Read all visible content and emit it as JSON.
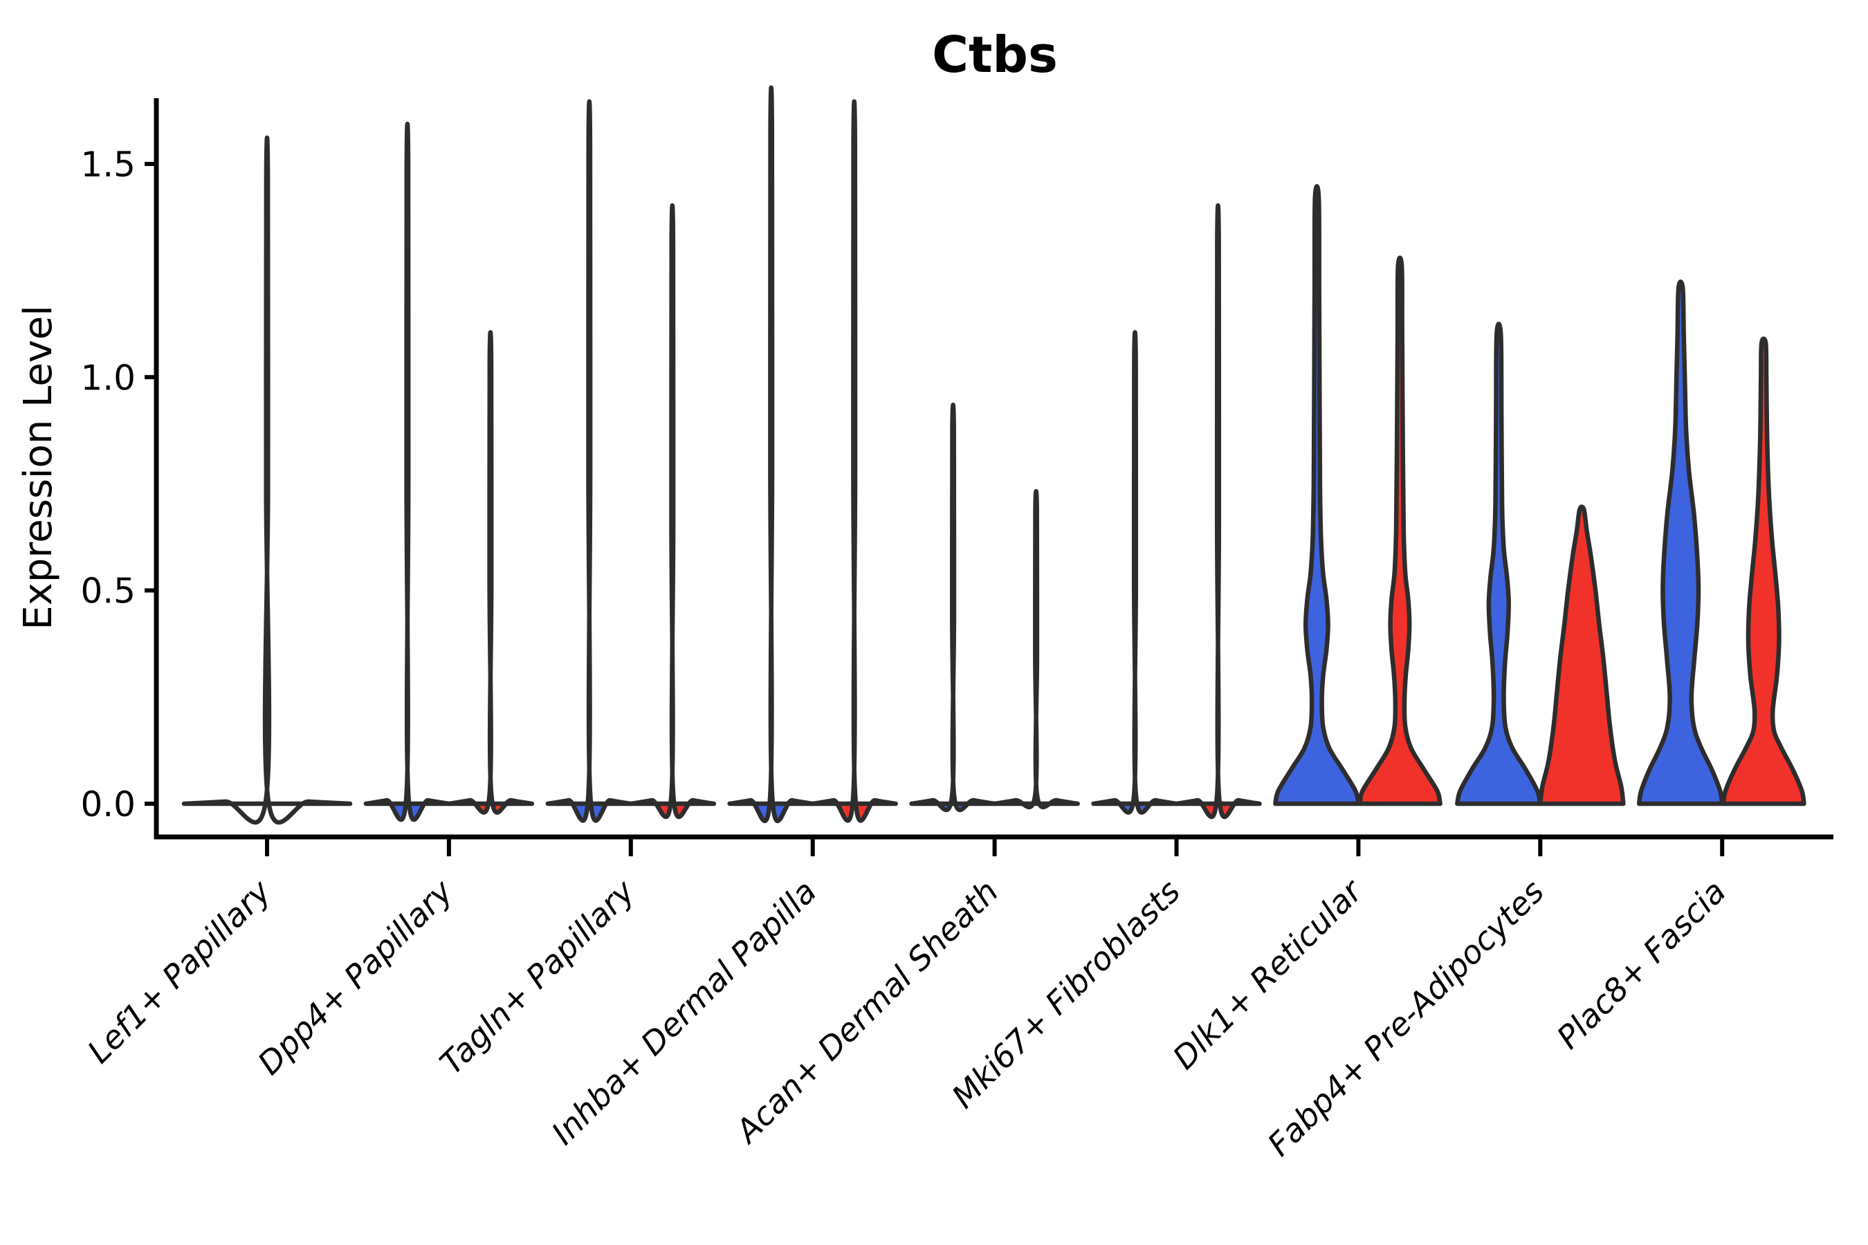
{
  "chart_data": {
    "type": "violin",
    "title": "Ctbs",
    "ylabel": "Expression Level",
    "xlabel": "",
    "ylim": [
      -0.08,
      1.65
    ],
    "yticks": [
      0.0,
      0.5,
      1.0,
      1.5
    ],
    "grid": false,
    "legend": "none",
    "baseline_value": 0.0,
    "split_colors": {
      "left": "#3E63DE",
      "right": "#F1322A"
    },
    "outline_color": "#2d2d2d",
    "categories": [
      {
        "label": "Lef1+ Papillary",
        "violins": [
          {
            "side": "center",
            "group": "single",
            "fill": "#ffffff",
            "max_expression": 1.47,
            "width_units": 2,
            "profile": [
              [
                0,
                1.0
              ],
              [
                0.005,
                0.5
              ],
              [
                0.012,
                0.012
              ],
              [
                0.74,
                0.011
              ],
              [
                1.47,
                0.009
              ]
            ]
          }
        ]
      },
      {
        "label": "Dpp4+ Papillary",
        "violins": [
          {
            "side": "left",
            "group": "blue",
            "fill": "#3E63DE",
            "max_expression": 1.5,
            "width_units": 1,
            "profile": [
              [
                0,
                1.0
              ],
              [
                0.008,
                0.5
              ],
              [
                0.02,
                0.024
              ],
              [
                0.75,
                0.021
              ],
              [
                1.5,
                0.018
              ]
            ]
          },
          {
            "side": "right",
            "group": "red",
            "fill": "#F1322A",
            "max_expression": 1.04,
            "width_units": 1,
            "profile": [
              [
                0,
                1.0
              ],
              [
                0.008,
                0.5
              ],
              [
                0.02,
                0.024
              ],
              [
                0.52,
                0.021
              ],
              [
                1.04,
                0.018
              ]
            ]
          }
        ]
      },
      {
        "label": "Tagln+ Papillary",
        "violins": [
          {
            "side": "left",
            "group": "blue",
            "fill": "#3E63DE",
            "max_expression": 1.55,
            "width_units": 1,
            "profile": [
              [
                0,
                1.0
              ],
              [
                0.008,
                0.5
              ],
              [
                0.02,
                0.024
              ],
              [
                0.78,
                0.021
              ],
              [
                1.55,
                0.018
              ]
            ]
          },
          {
            "side": "right",
            "group": "red",
            "fill": "#F1322A",
            "max_expression": 1.32,
            "width_units": 1,
            "profile": [
              [
                0,
                1.0
              ],
              [
                0.008,
                0.5
              ],
              [
                0.02,
                0.024
              ],
              [
                0.66,
                0.021
              ],
              [
                1.32,
                0.018
              ]
            ]
          }
        ]
      },
      {
        "label": "Inhba+ Dermal Papilla",
        "violins": [
          {
            "side": "left",
            "group": "blue",
            "fill": "#3E63DE",
            "max_expression": 1.58,
            "width_units": 1,
            "profile": [
              [
                0,
                1.0
              ],
              [
                0.008,
                0.5
              ],
              [
                0.02,
                0.024
              ],
              [
                0.79,
                0.021
              ],
              [
                1.58,
                0.018
              ]
            ]
          },
          {
            "side": "right",
            "group": "red",
            "fill": "#F1322A",
            "max_expression": 1.55,
            "width_units": 1,
            "profile": [
              [
                0,
                1.0
              ],
              [
                0.008,
                0.5
              ],
              [
                0.02,
                0.024
              ],
              [
                0.78,
                0.021
              ],
              [
                1.55,
                0.018
              ]
            ]
          }
        ]
      },
      {
        "label": "Acan+ Dermal Sheath",
        "violins": [
          {
            "side": "left",
            "group": "blue",
            "fill": "#3E63DE",
            "max_expression": 0.88,
            "width_units": 1,
            "profile": [
              [
                0,
                1.0
              ],
              [
                0.008,
                0.5
              ],
              [
                0.02,
                0.024
              ],
              [
                0.44,
                0.021
              ],
              [
                0.88,
                0.018
              ]
            ]
          },
          {
            "side": "right",
            "group": "red",
            "fill": "#F1322A",
            "max_expression": 0.69,
            "width_units": 1,
            "profile": [
              [
                0,
                1.0
              ],
              [
                0.008,
                0.5
              ],
              [
                0.02,
                0.024
              ],
              [
                0.35,
                0.021
              ],
              [
                0.69,
                0.018
              ]
            ]
          }
        ]
      },
      {
        "label": "Mki67+ Fibroblasts",
        "violins": [
          {
            "side": "left",
            "group": "blue",
            "fill": "#3E63DE",
            "max_expression": 1.04,
            "width_units": 1,
            "profile": [
              [
                0,
                1.0
              ],
              [
                0.008,
                0.5
              ],
              [
                0.02,
                0.024
              ],
              [
                0.52,
                0.021
              ],
              [
                1.04,
                0.018
              ]
            ]
          },
          {
            "side": "right",
            "group": "red",
            "fill": "#F1322A",
            "max_expression": 1.32,
            "width_units": 1,
            "profile": [
              [
                0,
                1.0
              ],
              [
                0.008,
                0.5
              ],
              [
                0.02,
                0.024
              ],
              [
                0.66,
                0.021
              ],
              [
                1.32,
                0.018
              ]
            ]
          }
        ]
      },
      {
        "label": "Dlk1+ Reticular",
        "violins": [
          {
            "side": "left",
            "group": "blue",
            "fill": "#3E63DE",
            "max_expression": 1.42,
            "width_units": 1,
            "profile": [
              [
                0,
                1.0
              ],
              [
                0.03,
                0.93
              ],
              [
                0.08,
                0.62
              ],
              [
                0.13,
                0.3
              ],
              [
                0.18,
                0.15
              ],
              [
                0.24,
                0.12
              ],
              [
                0.3,
                0.15
              ],
              [
                0.36,
                0.23
              ],
              [
                0.42,
                0.27
              ],
              [
                0.48,
                0.23
              ],
              [
                0.54,
                0.15
              ],
              [
                0.62,
                0.1
              ],
              [
                0.75,
                0.075
              ],
              [
                0.95,
                0.065
              ],
              [
                1.2,
                0.055
              ],
              [
                1.42,
                0.045
              ]
            ]
          },
          {
            "side": "right",
            "group": "red",
            "fill": "#F1322A",
            "max_expression": 1.26,
            "width_units": 1,
            "profile": [
              [
                0,
                0.97
              ],
              [
                0.03,
                0.9
              ],
              [
                0.08,
                0.58
              ],
              [
                0.13,
                0.27
              ],
              [
                0.18,
                0.13
              ],
              [
                0.24,
                0.11
              ],
              [
                0.3,
                0.14
              ],
              [
                0.36,
                0.2
              ],
              [
                0.42,
                0.23
              ],
              [
                0.48,
                0.2
              ],
              [
                0.54,
                0.13
              ],
              [
                0.64,
                0.09
              ],
              [
                0.85,
                0.07
              ],
              [
                1.1,
                0.055
              ],
              [
                1.26,
                0.045
              ]
            ]
          }
        ]
      },
      {
        "label": "Fabp4+ Pre-Adipocytes",
        "violins": [
          {
            "side": "left",
            "group": "blue",
            "fill": "#3E63DE",
            "max_expression": 1.1,
            "width_units": 1,
            "profile": [
              [
                0,
                1.0
              ],
              [
                0.03,
                0.93
              ],
              [
                0.08,
                0.65
              ],
              [
                0.13,
                0.33
              ],
              [
                0.18,
                0.16
              ],
              [
                0.25,
                0.12
              ],
              [
                0.33,
                0.15
              ],
              [
                0.4,
                0.21
              ],
              [
                0.47,
                0.24
              ],
              [
                0.53,
                0.2
              ],
              [
                0.6,
                0.12
              ],
              [
                0.7,
                0.08
              ],
              [
                0.9,
                0.065
              ],
              [
                1.1,
                0.05
              ]
            ]
          },
          {
            "side": "right",
            "group": "red",
            "fill": "#F1322A",
            "max_expression": 0.69,
            "width_units": 1,
            "profile": [
              [
                0,
                1.0
              ],
              [
                0.04,
                0.95
              ],
              [
                0.1,
                0.8
              ],
              [
                0.18,
                0.68
              ],
              [
                0.26,
                0.6
              ],
              [
                0.34,
                0.52
              ],
              [
                0.42,
                0.42
              ],
              [
                0.5,
                0.33
              ],
              [
                0.58,
                0.22
              ],
              [
                0.64,
                0.12
              ],
              [
                0.69,
                0.05
              ]
            ]
          }
        ]
      },
      {
        "label": "Plac8+ Fascia",
        "violins": [
          {
            "side": "left",
            "group": "blue",
            "fill": "#3E63DE",
            "max_expression": 1.21,
            "width_units": 1,
            "profile": [
              [
                0,
                1.0
              ],
              [
                0.03,
                0.95
              ],
              [
                0.08,
                0.75
              ],
              [
                0.13,
                0.5
              ],
              [
                0.18,
                0.32
              ],
              [
                0.25,
                0.26
              ],
              [
                0.34,
                0.33
              ],
              [
                0.42,
                0.4
              ],
              [
                0.5,
                0.43
              ],
              [
                0.58,
                0.4
              ],
              [
                0.68,
                0.32
              ],
              [
                0.78,
                0.2
              ],
              [
                0.88,
                0.13
              ],
              [
                1.0,
                0.1
              ],
              [
                1.1,
                0.075
              ],
              [
                1.21,
                0.05
              ]
            ]
          },
          {
            "side": "right",
            "group": "red",
            "fill": "#F1322A",
            "max_expression": 1.08,
            "width_units": 1,
            "profile": [
              [
                0,
                0.97
              ],
              [
                0.03,
                0.92
              ],
              [
                0.08,
                0.7
              ],
              [
                0.13,
                0.43
              ],
              [
                0.17,
                0.25
              ],
              [
                0.22,
                0.22
              ],
              [
                0.3,
                0.32
              ],
              [
                0.38,
                0.37
              ],
              [
                0.46,
                0.35
              ],
              [
                0.54,
                0.28
              ],
              [
                0.62,
                0.2
              ],
              [
                0.72,
                0.13
              ],
              [
                0.85,
                0.085
              ],
              [
                1.0,
                0.065
              ],
              [
                1.08,
                0.05
              ]
            ]
          }
        ]
      }
    ]
  }
}
